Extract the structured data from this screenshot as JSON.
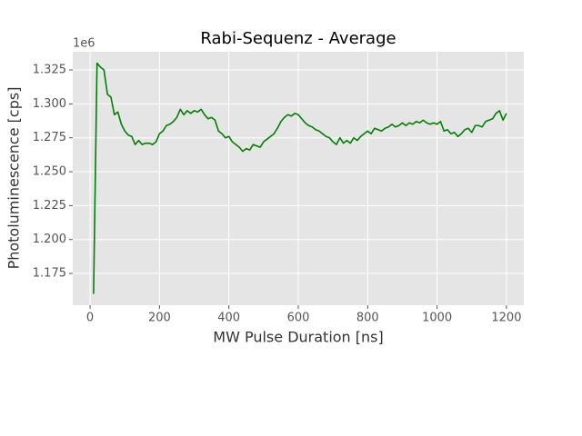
{
  "chart_data": {
    "type": "line",
    "title": "Rabi-Sequenz - Average",
    "x_label": "MW Pulse Duration [ns]",
    "y_label": "Photoluminescence [cps]",
    "y_offset_label": "1e6",
    "xlim": [
      -50,
      1250
    ],
    "xticks": [
      0,
      200,
      400,
      600,
      800,
      1000,
      1200
    ],
    "ylim": [
      1151600,
      1338400
    ],
    "yticks": [
      {
        "value": 1175000,
        "label": "1.175"
      },
      {
        "value": 1200000,
        "label": "1.200"
      },
      {
        "value": 1225000,
        "label": "1.225"
      },
      {
        "value": 1250000,
        "label": "1.250"
      },
      {
        "value": 1275000,
        "label": "1.275"
      },
      {
        "value": 1300000,
        "label": "1.300"
      },
      {
        "value": 1325000,
        "label": "1.325"
      }
    ],
    "grid": true,
    "x": [
      10,
      20,
      30,
      40,
      50,
      60,
      70,
      80,
      90,
      100,
      110,
      120,
      130,
      140,
      150,
      160,
      170,
      180,
      190,
      200,
      210,
      220,
      230,
      240,
      250,
      260,
      270,
      280,
      290,
      300,
      310,
      320,
      330,
      340,
      350,
      360,
      370,
      380,
      390,
      400,
      410,
      420,
      430,
      440,
      450,
      460,
      470,
      480,
      490,
      500,
      510,
      520,
      530,
      540,
      550,
      560,
      570,
      580,
      590,
      600,
      610,
      620,
      630,
      640,
      650,
      660,
      670,
      680,
      690,
      700,
      710,
      720,
      730,
      740,
      750,
      760,
      770,
      780,
      790,
      800,
      810,
      820,
      830,
      840,
      850,
      860,
      870,
      880,
      890,
      900,
      910,
      920,
      930,
      940,
      950,
      960,
      970,
      980,
      990,
      1000,
      1010,
      1020,
      1030,
      1040,
      1050,
      1060,
      1070,
      1080,
      1090,
      1100,
      1110,
      1120,
      1130,
      1140,
      1150,
      1160,
      1170,
      1180,
      1190,
      1200
    ],
    "series": [
      {
        "color": "#008000",
        "values": [
          1160000,
          1330000,
          1327000,
          1325000,
          1307000,
          1305000,
          1292000,
          1294000,
          1285000,
          1280000,
          1277000,
          1276000,
          1270000,
          1273000,
          1270000,
          1271000,
          1271000,
          1270000,
          1272000,
          1278000,
          1280000,
          1284000,
          1285000,
          1287000,
          1290000,
          1296000,
          1292000,
          1295000,
          1293000,
          1295000,
          1294000,
          1296000,
          1292000,
          1289000,
          1290000,
          1288000,
          1280000,
          1278000,
          1275000,
          1276000,
          1272000,
          1270000,
          1268000,
          1265000,
          1267000,
          1266000,
          1270000,
          1269000,
          1268000,
          1272000,
          1274000,
          1276000,
          1278000,
          1282000,
          1287000,
          1290000,
          1292000,
          1291000,
          1293000,
          1292000,
          1289000,
          1286000,
          1284000,
          1283000,
          1281000,
          1280000,
          1278000,
          1276000,
          1275000,
          1272000,
          1270000,
          1275000,
          1271000,
          1273000,
          1271000,
          1275000,
          1273000,
          1276000,
          1278000,
          1280000,
          1278000,
          1282000,
          1281000,
          1280000,
          1282000,
          1283000,
          1285000,
          1283000,
          1284000,
          1286000,
          1284000,
          1286000,
          1285000,
          1287000,
          1286000,
          1288000,
          1286000,
          1285000,
          1286000,
          1285000,
          1287000,
          1280000,
          1281000,
          1278000,
          1279000,
          1276000,
          1278000,
          1281000,
          1282000,
          1279000,
          1284000,
          1284000,
          1283000,
          1287000,
          1288000,
          1289000,
          1293000,
          1295000,
          1288000,
          1293000
        ]
      }
    ]
  }
}
